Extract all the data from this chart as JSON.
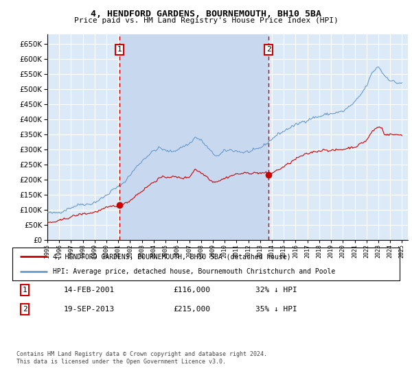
{
  "title": "4, HENDFORD GARDENS, BOURNEMOUTH, BH10 5BA",
  "subtitle": "Price paid vs. HM Land Registry's House Price Index (HPI)",
  "ylim": [
    0,
    680000
  ],
  "xlim_start": 1995.0,
  "xlim_end": 2025.5,
  "plot_bg_color": "#dce9f7",
  "fill_bg_color": "#c8d8ee",
  "grid_color": "#ffffff",
  "sale1_x": 2001.12,
  "sale1_y": 116000,
  "sale2_x": 2013.72,
  "sale2_y": 215000,
  "sale1_label": "1",
  "sale2_label": "2",
  "legend_label_red": "4, HENDFORD GARDENS, BOURNEMOUTH, BH10 5BA (detached house)",
  "legend_label_blue": "HPI: Average price, detached house, Bournemouth Christchurch and Poole",
  "table_row1": [
    "1",
    "14-FEB-2001",
    "£116,000",
    "32% ↓ HPI"
  ],
  "table_row2": [
    "2",
    "19-SEP-2013",
    "£215,000",
    "35% ↓ HPI"
  ],
  "footnote": "Contains HM Land Registry data © Crown copyright and database right 2024.\nThis data is licensed under the Open Government Licence v3.0.",
  "red_color": "#cc0000",
  "blue_color": "#6699cc",
  "marker_dot_color": "#cc0000"
}
